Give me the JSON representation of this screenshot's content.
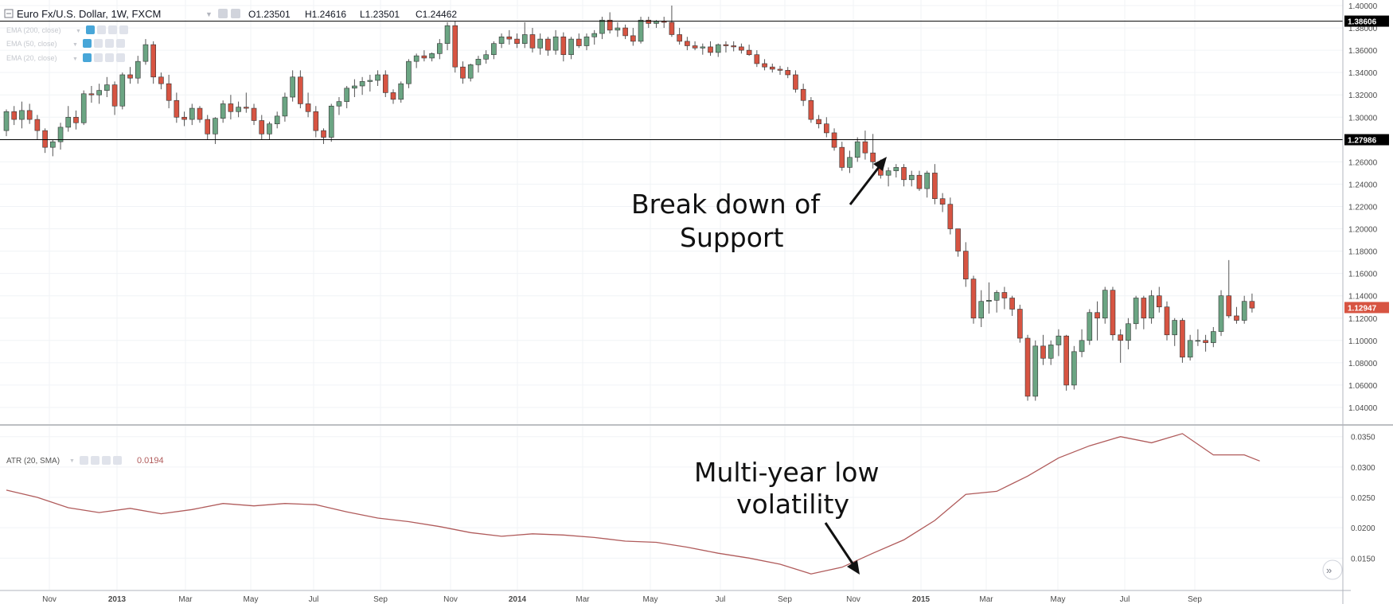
{
  "header": {
    "symbol": "Euro Fx/U.S. Dollar, 1W, FXCM",
    "open": "O1.23501",
    "high": "H1.24616",
    "low": "L1.23501",
    "close": "C1.24462"
  },
  "indicators": [
    {
      "label": "EMA (200, close)"
    },
    {
      "label": "EMA (50, close)"
    },
    {
      "label": "EMA (20, close)"
    }
  ],
  "atr_header": {
    "label": "ATR (20, SMA)",
    "value": "0.0194"
  },
  "annotations": {
    "breakdown_line1": "Break down of",
    "breakdown_line2": "Support",
    "lowvol_line1": "Multi-year low",
    "lowvol_line2": "volatility"
  },
  "price_levels": {
    "resistance": {
      "value": 1.38606,
      "label": "1.38606"
    },
    "support": {
      "value": 1.27986,
      "label": "1.27986"
    },
    "last": {
      "value": 1.12947,
      "label": "1.12947"
    }
  },
  "colors": {
    "up": "#6ba583",
    "down": "#d75442",
    "atr_line": "#b05b5b",
    "grid": "#f0f3f6",
    "accent": "#48a6d8",
    "last_price_bg": "#d75442",
    "level_bg": "#000000"
  },
  "chart_data": [
    {
      "type": "candlestick",
      "title": "Euro Fx/U.S. Dollar, 1W, FXCM",
      "ylim": [
        1.025,
        1.405
      ],
      "y_ticks": [
        "1.40000",
        "1.38000",
        "1.36000",
        "1.34000",
        "1.32000",
        "1.30000",
        "1.28000",
        "1.26000",
        "1.24000",
        "1.22000",
        "1.20000",
        "1.18000",
        "1.16000",
        "1.14000",
        "1.12000",
        "1.10000",
        "1.08000",
        "1.06000",
        "1.04000"
      ],
      "x_ticks": [
        "Nov",
        "2013",
        "Mar",
        "May",
        "Jul",
        "Sep",
        "Nov",
        "2014",
        "Mar",
        "May",
        "Jul",
        "Sep",
        "Nov",
        "2015",
        "Mar",
        "May",
        "Jul",
        "Sep"
      ],
      "grid": true,
      "candles": [
        [
          1.288,
          1.307,
          1.283,
          1.305
        ],
        [
          1.305,
          1.31,
          1.293,
          1.298
        ],
        [
          1.298,
          1.314,
          1.29,
          1.306
        ],
        [
          1.306,
          1.312,
          1.294,
          1.298
        ],
        [
          1.298,
          1.302,
          1.28,
          1.288
        ],
        [
          1.288,
          1.29,
          1.268,
          1.273
        ],
        [
          1.273,
          1.28,
          1.265,
          1.278
        ],
        [
          1.278,
          1.295,
          1.271,
          1.291
        ],
        [
          1.291,
          1.31,
          1.287,
          1.3
        ],
        [
          1.3,
          1.306,
          1.289,
          1.295
        ],
        [
          1.295,
          1.324,
          1.293,
          1.321
        ],
        [
          1.321,
          1.328,
          1.313,
          1.32
        ],
        [
          1.32,
          1.33,
          1.312,
          1.324
        ],
        [
          1.324,
          1.336,
          1.318,
          1.329
        ],
        [
          1.329,
          1.332,
          1.302,
          1.31
        ],
        [
          1.31,
          1.34,
          1.307,
          1.338
        ],
        [
          1.338,
          1.345,
          1.33,
          1.335
        ],
        [
          1.335,
          1.355,
          1.33,
          1.35
        ],
        [
          1.35,
          1.37,
          1.347,
          1.365
        ],
        [
          1.365,
          1.368,
          1.33,
          1.336
        ],
        [
          1.336,
          1.34,
          1.325,
          1.33
        ],
        [
          1.33,
          1.338,
          1.308,
          1.315
        ],
        [
          1.315,
          1.322,
          1.295,
          1.3
        ],
        [
          1.3,
          1.305,
          1.292,
          1.298
        ],
        [
          1.298,
          1.312,
          1.293,
          1.308
        ],
        [
          1.308,
          1.31,
          1.295,
          1.298
        ],
        [
          1.298,
          1.302,
          1.28,
          1.285
        ],
        [
          1.285,
          1.3,
          1.276,
          1.299
        ],
        [
          1.299,
          1.315,
          1.295,
          1.312
        ],
        [
          1.312,
          1.32,
          1.298,
          1.305
        ],
        [
          1.305,
          1.314,
          1.3,
          1.309
        ],
        [
          1.309,
          1.322,
          1.304,
          1.308
        ],
        [
          1.308,
          1.312,
          1.293,
          1.297
        ],
        [
          1.297,
          1.302,
          1.28,
          1.285
        ],
        [
          1.285,
          1.296,
          1.28,
          1.294
        ],
        [
          1.294,
          1.305,
          1.29,
          1.301
        ],
        [
          1.301,
          1.322,
          1.296,
          1.318
        ],
        [
          1.318,
          1.342,
          1.314,
          1.336
        ],
        [
          1.336,
          1.342,
          1.308,
          1.312
        ],
        [
          1.312,
          1.322,
          1.3,
          1.305
        ],
        [
          1.305,
          1.31,
          1.282,
          1.288
        ],
        [
          1.288,
          1.29,
          1.276,
          1.282
        ],
        [
          1.282,
          1.312,
          1.278,
          1.31
        ],
        [
          1.31,
          1.318,
          1.302,
          1.314
        ],
        [
          1.314,
          1.328,
          1.308,
          1.326
        ],
        [
          1.326,
          1.334,
          1.318,
          1.328
        ],
        [
          1.328,
          1.336,
          1.32,
          1.332
        ],
        [
          1.332,
          1.338,
          1.323,
          1.333
        ],
        [
          1.333,
          1.342,
          1.328,
          1.338
        ],
        [
          1.338,
          1.342,
          1.318,
          1.322
        ],
        [
          1.322,
          1.325,
          1.312,
          1.316
        ],
        [
          1.316,
          1.332,
          1.313,
          1.33
        ],
        [
          1.33,
          1.352,
          1.326,
          1.35
        ],
        [
          1.35,
          1.357,
          1.344,
          1.355
        ],
        [
          1.355,
          1.36,
          1.35,
          1.353
        ],
        [
          1.353,
          1.358,
          1.35,
          1.357
        ],
        [
          1.357,
          1.37,
          1.352,
          1.366
        ],
        [
          1.366,
          1.385,
          1.36,
          1.382
        ],
        [
          1.382,
          1.386,
          1.34,
          1.345
        ],
        [
          1.345,
          1.35,
          1.33,
          1.335
        ],
        [
          1.335,
          1.348,
          1.332,
          1.347
        ],
        [
          1.347,
          1.355,
          1.34,
          1.352
        ],
        [
          1.352,
          1.36,
          1.348,
          1.356
        ],
        [
          1.356,
          1.368,
          1.352,
          1.366
        ],
        [
          1.366,
          1.375,
          1.362,
          1.372
        ],
        [
          1.372,
          1.378,
          1.365,
          1.37
        ],
        [
          1.37,
          1.375,
          1.362,
          1.366
        ],
        [
          1.366,
          1.385,
          1.362,
          1.374
        ],
        [
          1.374,
          1.38,
          1.358,
          1.362
        ],
        [
          1.362,
          1.375,
          1.356,
          1.37
        ],
        [
          1.37,
          1.372,
          1.355,
          1.36
        ],
        [
          1.36,
          1.378,
          1.356,
          1.372
        ],
        [
          1.372,
          1.376,
          1.35,
          1.356
        ],
        [
          1.356,
          1.372,
          1.352,
          1.37
        ],
        [
          1.37,
          1.375,
          1.362,
          1.364
        ],
        [
          1.364,
          1.375,
          1.36,
          1.372
        ],
        [
          1.372,
          1.378,
          1.365,
          1.375
        ],
        [
          1.375,
          1.39,
          1.37,
          1.387
        ],
        [
          1.387,
          1.394,
          1.375,
          1.378
        ],
        [
          1.378,
          1.385,
          1.372,
          1.38
        ],
        [
          1.38,
          1.383,
          1.37,
          1.373
        ],
        [
          1.373,
          1.38,
          1.364,
          1.368
        ],
        [
          1.368,
          1.39,
          1.366,
          1.387
        ],
        [
          1.387,
          1.39,
          1.38,
          1.384
        ],
        [
          1.384,
          1.387,
          1.38,
          1.386
        ],
        [
          1.386,
          1.39,
          1.38,
          1.385
        ],
        [
          1.385,
          1.4,
          1.372,
          1.374
        ],
        [
          1.374,
          1.38,
          1.365,
          1.368
        ],
        [
          1.368,
          1.372,
          1.36,
          1.364
        ],
        [
          1.364,
          1.368,
          1.36,
          1.362
        ],
        [
          1.362,
          1.366,
          1.356,
          1.363
        ],
        [
          1.363,
          1.368,
          1.355,
          1.358
        ],
        [
          1.358,
          1.366,
          1.354,
          1.365
        ],
        [
          1.365,
          1.368,
          1.358,
          1.364
        ],
        [
          1.364,
          1.368,
          1.359,
          1.363
        ],
        [
          1.363,
          1.366,
          1.357,
          1.36
        ],
        [
          1.36,
          1.365,
          1.355,
          1.356
        ],
        [
          1.356,
          1.36,
          1.345,
          1.348
        ],
        [
          1.348,
          1.352,
          1.342,
          1.345
        ],
        [
          1.345,
          1.348,
          1.34,
          1.343
        ],
        [
          1.343,
          1.346,
          1.338,
          1.342
        ],
        [
          1.342,
          1.345,
          1.335,
          1.338
        ],
        [
          1.338,
          1.342,
          1.322,
          1.325
        ],
        [
          1.325,
          1.33,
          1.31,
          1.315
        ],
        [
          1.315,
          1.318,
          1.295,
          1.298
        ],
        [
          1.298,
          1.302,
          1.29,
          1.294
        ],
        [
          1.294,
          1.3,
          1.282,
          1.286
        ],
        [
          1.286,
          1.29,
          1.27,
          1.273
        ],
        [
          1.273,
          1.278,
          1.252,
          1.255
        ],
        [
          1.255,
          1.27,
          1.25,
          1.264
        ],
        [
          1.264,
          1.282,
          1.26,
          1.278
        ],
        [
          1.278,
          1.288,
          1.262,
          1.268
        ],
        [
          1.268,
          1.285,
          1.254,
          1.26
        ],
        [
          1.26,
          1.262,
          1.245,
          1.248
        ],
        [
          1.248,
          1.255,
          1.238,
          1.252
        ],
        [
          1.252,
          1.258,
          1.246,
          1.255
        ],
        [
          1.255,
          1.258,
          1.238,
          1.244
        ],
        [
          1.244,
          1.252,
          1.238,
          1.248
        ],
        [
          1.248,
          1.252,
          1.234,
          1.236
        ],
        [
          1.236,
          1.252,
          1.228,
          1.25
        ],
        [
          1.25,
          1.258,
          1.222,
          1.227
        ],
        [
          1.227,
          1.232,
          1.215,
          1.222
        ],
        [
          1.222,
          1.228,
          1.195,
          1.2
        ],
        [
          1.2,
          1.2,
          1.175,
          1.18
        ],
        [
          1.18,
          1.188,
          1.148,
          1.155
        ],
        [
          1.155,
          1.158,
          1.115,
          1.12
        ],
        [
          1.12,
          1.145,
          1.112,
          1.135
        ],
        [
          1.135,
          1.152,
          1.124,
          1.136
        ],
        [
          1.136,
          1.145,
          1.125,
          1.143
        ],
        [
          1.143,
          1.148,
          1.128,
          1.138
        ],
        [
          1.138,
          1.14,
          1.122,
          1.128
        ],
        [
          1.128,
          1.132,
          1.098,
          1.102
        ],
        [
          1.102,
          1.105,
          1.046,
          1.05
        ],
        [
          1.05,
          1.1,
          1.046,
          1.095
        ],
        [
          1.095,
          1.105,
          1.078,
          1.084
        ],
        [
          1.084,
          1.1,
          1.078,
          1.096
        ],
        [
          1.096,
          1.11,
          1.086,
          1.104
        ],
        [
          1.104,
          1.105,
          1.055,
          1.06
        ],
        [
          1.06,
          1.095,
          1.056,
          1.09
        ],
        [
          1.09,
          1.11,
          1.085,
          1.1
        ],
        [
          1.1,
          1.128,
          1.096,
          1.125
        ],
        [
          1.125,
          1.135,
          1.1,
          1.12
        ],
        [
          1.12,
          1.148,
          1.115,
          1.145
        ],
        [
          1.145,
          1.148,
          1.1,
          1.105
        ],
        [
          1.105,
          1.11,
          1.08,
          1.1
        ],
        [
          1.1,
          1.12,
          1.092,
          1.115
        ],
        [
          1.115,
          1.14,
          1.11,
          1.138
        ],
        [
          1.138,
          1.14,
          1.11,
          1.12
        ],
        [
          1.12,
          1.145,
          1.115,
          1.14
        ],
        [
          1.14,
          1.148,
          1.125,
          1.13
        ],
        [
          1.13,
          1.135,
          1.1,
          1.105
        ],
        [
          1.105,
          1.12,
          1.095,
          1.118
        ],
        [
          1.118,
          1.12,
          1.08,
          1.085
        ],
        [
          1.085,
          1.105,
          1.082,
          1.1
        ],
        [
          1.1,
          1.11,
          1.095,
          1.1
        ],
        [
          1.1,
          1.105,
          1.09,
          1.098
        ],
        [
          1.098,
          1.112,
          1.094,
          1.108
        ],
        [
          1.108,
          1.145,
          1.104,
          1.14
        ],
        [
          1.14,
          1.172,
          1.12,
          1.122
        ],
        [
          1.122,
          1.13,
          1.115,
          1.118
        ],
        [
          1.118,
          1.14,
          1.115,
          1.135
        ],
        [
          1.135,
          1.142,
          1.125,
          1.129
        ]
      ]
    },
    {
      "type": "line",
      "title": "ATR (20, SMA)",
      "ylim": [
        0.0098,
        0.0368
      ],
      "y_ticks": [
        "0.0350",
        "0.0300",
        "0.0250",
        "0.0200",
        "0.0150"
      ],
      "x": [
        0,
        4,
        8,
        12,
        16,
        20,
        24,
        28,
        32,
        36,
        40,
        44,
        48,
        52,
        56,
        60,
        64,
        68,
        72,
        76,
        80,
        84,
        88,
        92,
        96,
        100,
        104,
        108,
        112,
        116,
        120,
        124,
        128,
        132,
        136,
        140,
        144,
        148,
        152,
        156,
        160,
        162
      ],
      "values": [
        0.0262,
        0.025,
        0.0233,
        0.0225,
        0.0232,
        0.0223,
        0.023,
        0.024,
        0.0236,
        0.024,
        0.0238,
        0.0226,
        0.0216,
        0.021,
        0.0202,
        0.0192,
        0.0186,
        0.019,
        0.0188,
        0.0184,
        0.0178,
        0.0176,
        0.0168,
        0.0158,
        0.015,
        0.014,
        0.0124,
        0.0135,
        0.0158,
        0.018,
        0.0212,
        0.0255,
        0.026,
        0.0285,
        0.0315,
        0.0335,
        0.035,
        0.034,
        0.0355,
        0.032,
        0.032,
        0.031
      ]
    }
  ]
}
